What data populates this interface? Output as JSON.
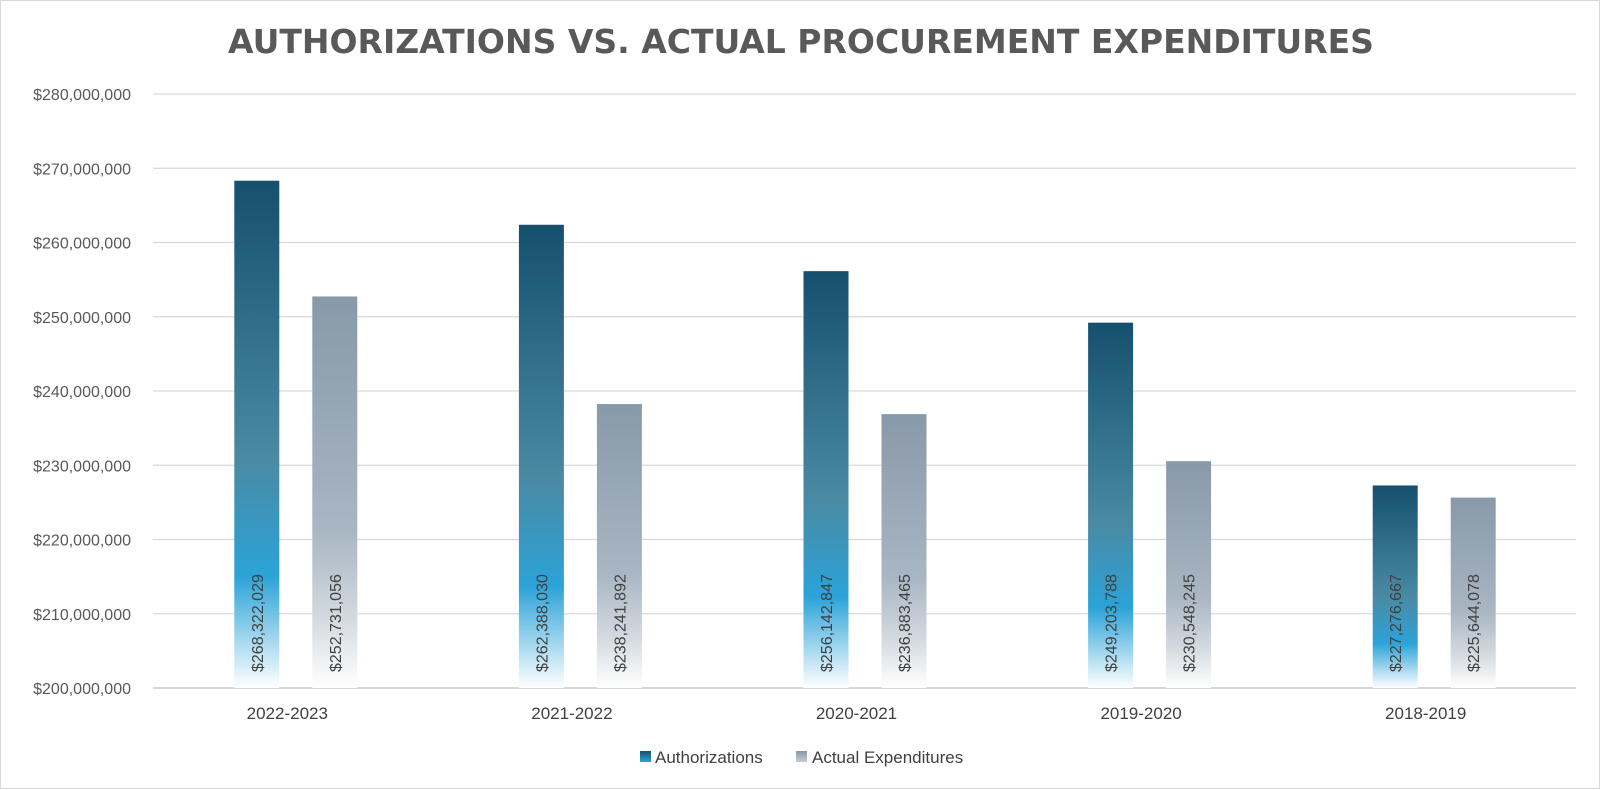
{
  "chart_data": {
    "type": "bar",
    "title": "AUTHORIZATIONS VS. ACTUAL PROCUREMENT EXPENDITURES",
    "xlabel": "",
    "ylabel": "",
    "categories": [
      "2022-2023",
      "2021-2022",
      "2020-2021",
      "2019-2020",
      "2018-2019"
    ],
    "series": [
      {
        "name": "Authorizations",
        "values": [
          268322029,
          262388030,
          256142847,
          249203788,
          227276667
        ],
        "labels": [
          "$268,322,029",
          "$262,388,030",
          "$256,142,847",
          "$249,203,788",
          "$227,276,667"
        ],
        "color_top": "#15506f",
        "color_mid": "#2ba3d8",
        "color_bottom": "#ffffff"
      },
      {
        "name": "Actual Expenditures",
        "values": [
          252731056,
          238241892,
          236883465,
          230548245,
          225644078
        ],
        "labels": [
          "$252,731,056",
          "$238,241,892",
          "$236,883,465",
          "$230,548,245",
          "$225,644,078"
        ],
        "color_top": "#8899a9",
        "color_mid": "#a9b6c3",
        "color_bottom": "#ffffff"
      }
    ],
    "ylim": [
      200000000,
      280000000
    ],
    "ytick_values": [
      200000000,
      210000000,
      220000000,
      230000000,
      240000000,
      250000000,
      260000000,
      270000000,
      280000000
    ],
    "ytick_labels": [
      "$200,000,000",
      "$210,000,000",
      "$220,000,000",
      "$230,000,000",
      "$240,000,000",
      "$250,000,000",
      "$260,000,000",
      "$270,000,000",
      "$280,000,000"
    ],
    "grid": true,
    "legend_position": "bottom-center"
  }
}
